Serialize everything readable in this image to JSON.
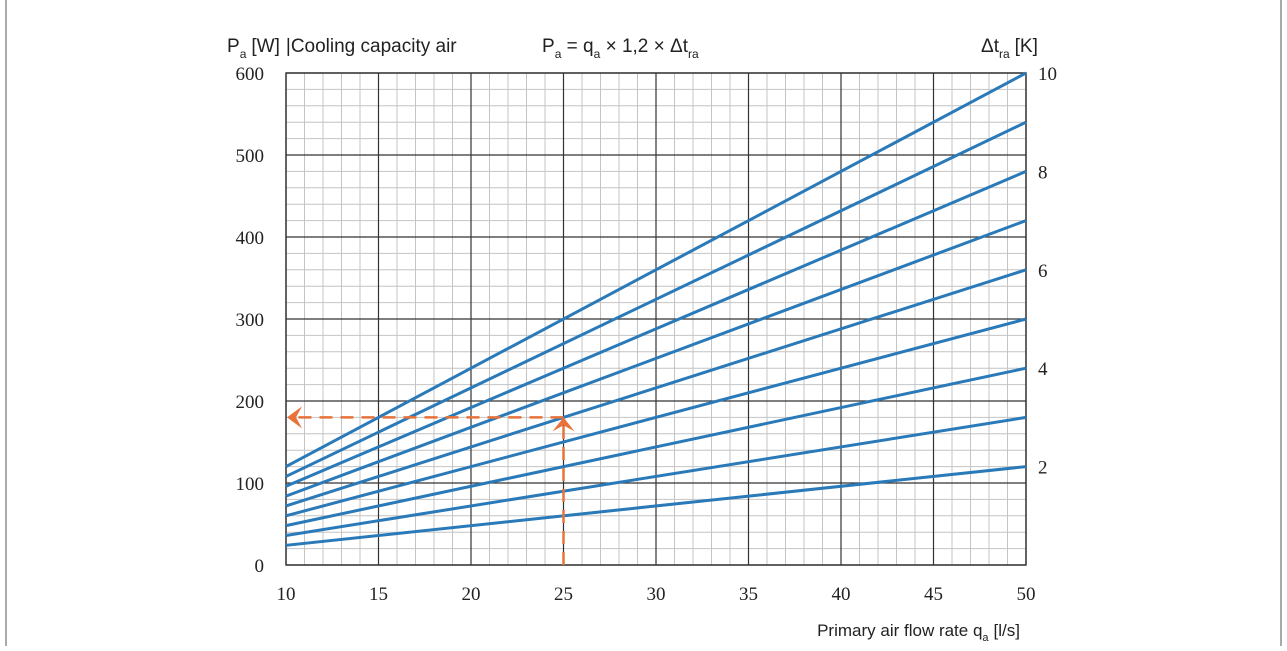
{
  "chart_data": {
    "type": "line",
    "title_left": {
      "sym": "P",
      "sub": "a",
      "unit": "[W]",
      "desc": "Cooling capacity air"
    },
    "formula": {
      "p": "P",
      "p_sub": "a",
      "eq": " = q",
      "q_sub": "a",
      "rest": " × 1,2 × Δt",
      "t_sub": "ra"
    },
    "right_label": {
      "sym": "Δt",
      "sub": "ra",
      "unit": "[K]"
    },
    "xlabel": {
      "text": "Primary air flow rate q",
      "sub": "a",
      "unit": "[l/s]"
    },
    "x_ticks": [
      "10",
      "15",
      "20",
      "25",
      "30",
      "35",
      "40",
      "45",
      "50"
    ],
    "y_ticks": [
      "0",
      "100",
      "200",
      "300",
      "400",
      "500",
      "600"
    ],
    "right_ticks": [
      "10",
      "8",
      "6",
      "4",
      "2"
    ],
    "xlim": [
      10,
      50
    ],
    "ylim": [
      0,
      600
    ],
    "grid": true,
    "line_color": "#2a7ab9",
    "example_color": "#e8733a",
    "series": [
      {
        "dt": 2,
        "values": [
          [
            10,
            24
          ],
          [
            50,
            120
          ]
        ]
      },
      {
        "dt": 3,
        "values": [
          [
            10,
            36
          ],
          [
            50,
            180
          ]
        ]
      },
      {
        "dt": 4,
        "values": [
          [
            10,
            48
          ],
          [
            50,
            240
          ]
        ]
      },
      {
        "dt": 5,
        "values": [
          [
            10,
            60
          ],
          [
            50,
            300
          ]
        ]
      },
      {
        "dt": 6,
        "values": [
          [
            10,
            72
          ],
          [
            50,
            360
          ]
        ]
      },
      {
        "dt": 7,
        "values": [
          [
            10,
            84
          ],
          [
            50,
            420
          ]
        ]
      },
      {
        "dt": 8,
        "values": [
          [
            10,
            96
          ],
          [
            50,
            480
          ]
        ]
      },
      {
        "dt": 9,
        "values": [
          [
            10,
            108
          ],
          [
            50,
            540
          ]
        ]
      },
      {
        "dt": 10,
        "values": [
          [
            10,
            120
          ],
          [
            50,
            600
          ]
        ]
      }
    ],
    "example": {
      "q": 25,
      "p": 180
    }
  }
}
